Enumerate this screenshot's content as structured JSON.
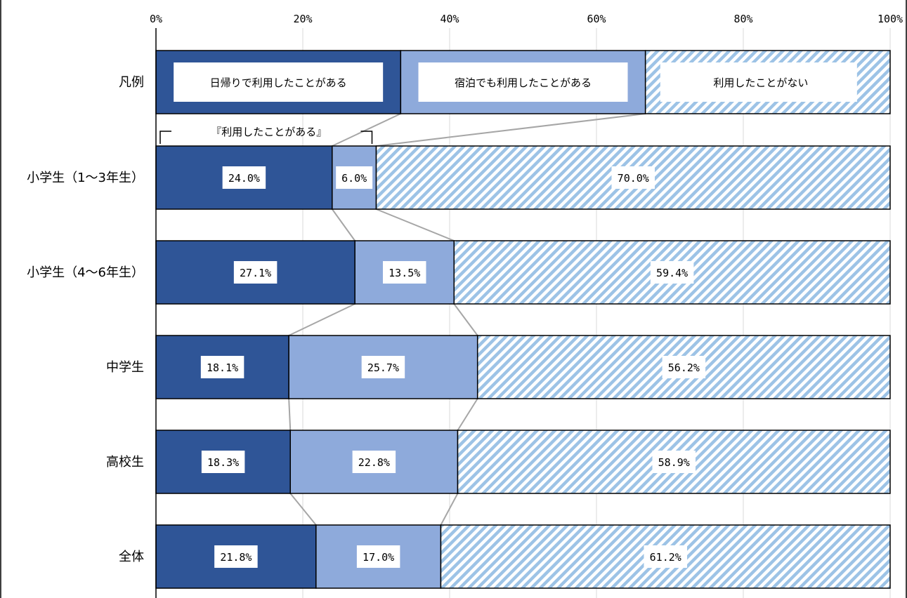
{
  "chart_data": {
    "type": "bar",
    "stacked": true,
    "orientation": "horizontal",
    "percent_scale": true,
    "xlim": [
      0,
      100
    ],
    "x_ticks": [
      "0%",
      "20%",
      "40%",
      "60%",
      "80%",
      "100%"
    ],
    "legend": {
      "label": "凡例",
      "items": [
        "日帰りで利用したことがある",
        "宿泊でも利用したことがある",
        "利用したことがない"
      ]
    },
    "bracket_label": "『利用したことがある』",
    "categories": [
      "小学生（1～3年生）",
      "小学生（4～6年生）",
      "中学生",
      "高校生",
      "全体"
    ],
    "series": [
      {
        "name": "日帰りで利用したことがある",
        "values": [
          24.0,
          27.1,
          18.1,
          18.3,
          21.8
        ],
        "labels": [
          "24.0%",
          "27.1%",
          "18.1%",
          "18.3%",
          "21.8%"
        ],
        "color": "#2f5597"
      },
      {
        "name": "宿泊でも利用したことがある",
        "values": [
          6.0,
          13.5,
          25.7,
          22.8,
          17.0
        ],
        "labels": [
          "6.0%",
          "13.5%",
          "25.7%",
          "22.8%",
          "17.0%"
        ],
        "color": "#8eaadb"
      },
      {
        "name": "利用したことがない",
        "values": [
          70.0,
          59.4,
          56.2,
          58.9,
          61.2
        ],
        "labels": [
          "70.0%",
          "59.4%",
          "56.2%",
          "58.9%",
          "61.2%"
        ],
        "color": "#9dc3e6",
        "pattern": "diagonal-stripes"
      }
    ],
    "grid": true
  }
}
